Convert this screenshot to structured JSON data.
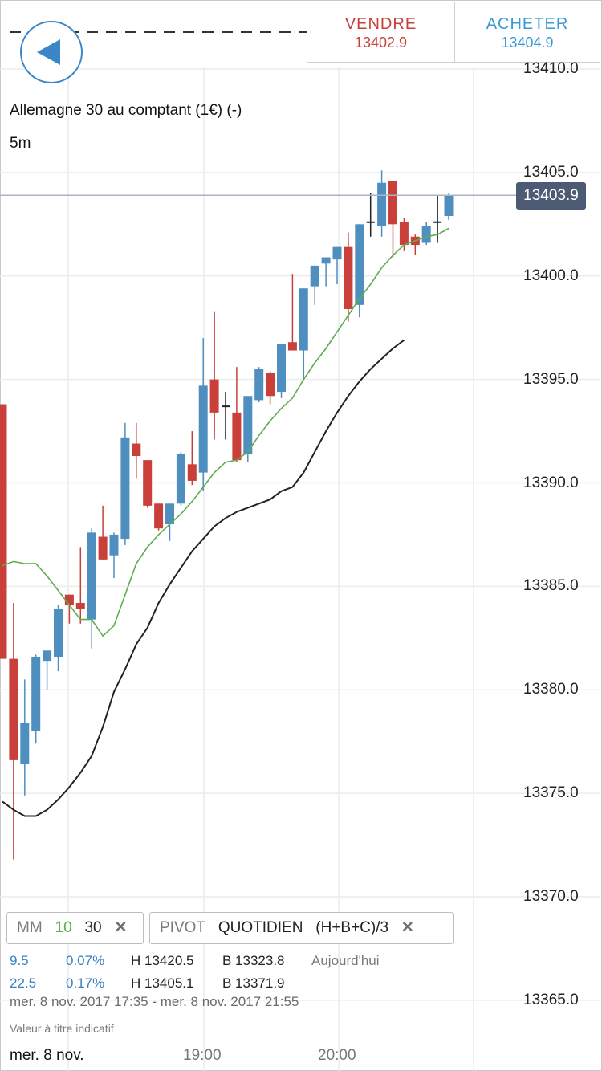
{
  "header": {
    "sell": {
      "label": "VENDRE",
      "price": "13402.9"
    },
    "buy": {
      "label": "ACHETER",
      "price": "13404.9"
    }
  },
  "instrument": {
    "name": "Allemagne 30 au comptant (1€) (-)",
    "timeframe": "5m"
  },
  "current_price": "13403.9",
  "colors": {
    "bull": "#4f8fbf",
    "bear": "#c9403a",
    "doji": "#222222",
    "ma10": "#5cad4d",
    "ma30": "#222222",
    "price_line": "#a8b4c2"
  },
  "indicators": {
    "mm": {
      "name": "MM",
      "p1": "10",
      "p2": "30",
      "close": "✕"
    },
    "pivot": {
      "name": "PIVOT",
      "period": "QUOTIDIEN",
      "formula": "(H+B+C)/3",
      "close": "✕"
    }
  },
  "info_rows": [
    {
      "val": "9.5",
      "pct": "0.07%",
      "high": "H 13420.5",
      "low": "B 13323.8",
      "label": "Aujourd'hui"
    },
    {
      "val": "22.5",
      "pct": "0.17%",
      "high": "H 13405.1",
      "low": "B 13371.9",
      "label": ""
    }
  ],
  "date_range": "mer. 8 nov. 2017 17:35 - mer. 8 nov. 2017 21:55",
  "disclaimer": "Valeur à titre indicatif",
  "time_axis": {
    "date": "mer. 8 nov.",
    "t1": "19:00",
    "t2": "20:00"
  },
  "chart_data": {
    "type": "candlestick",
    "y_ticks": [
      "13410.0",
      "13405.0",
      "13400.0",
      "13395.0",
      "13390.0",
      "13385.0",
      "13380.0",
      "13375.0",
      "13370.0",
      "13365.0"
    ],
    "y_range": [
      13363,
      13412
    ],
    "current_price_line": 13403.9,
    "candles": [
      {
        "o": 13393.8,
        "h": 13393.8,
        "l": 13381.5,
        "c": 13381.5
      },
      {
        "o": 13381.5,
        "h": 13384.2,
        "l": 13371.8,
        "c": 13376.6
      },
      {
        "o": 13376.4,
        "h": 13380.5,
        "l": 13374.9,
        "c": 13378.4
      },
      {
        "o": 13378.0,
        "h": 13381.7,
        "l": 13377.4,
        "c": 13381.6
      },
      {
        "o": 13381.4,
        "h": 13381.8,
        "l": 13380.0,
        "c": 13381.9
      },
      {
        "o": 13381.6,
        "h": 13384.1,
        "l": 13380.9,
        "c": 13383.9
      },
      {
        "o": 13384.6,
        "h": 13384.6,
        "l": 13383.2,
        "c": 13384.1
      },
      {
        "o": 13384.2,
        "h": 13386.9,
        "l": 13383.2,
        "c": 13383.9
      },
      {
        "o": 13383.4,
        "h": 13387.8,
        "l": 13382.0,
        "c": 13387.6
      },
      {
        "o": 13387.4,
        "h": 13388.9,
        "l": 13386.3,
        "c": 13386.3
      },
      {
        "o": 13386.5,
        "h": 13387.6,
        "l": 13385.4,
        "c": 13387.5
      },
      {
        "o": 13387.3,
        "h": 13392.9,
        "l": 13387.0,
        "c": 13392.2
      },
      {
        "o": 13391.9,
        "h": 13392.9,
        "l": 13390.2,
        "c": 13391.3
      },
      {
        "o": 13391.1,
        "h": 13391.1,
        "l": 13388.8,
        "c": 13388.9
      },
      {
        "o": 13389.0,
        "h": 13389.0,
        "l": 13387.7,
        "c": 13387.8
      },
      {
        "o": 13388.0,
        "h": 13389.0,
        "l": 13387.2,
        "c": 13389.0
      },
      {
        "o": 13389.0,
        "h": 13391.5,
        "l": 13388.9,
        "c": 13391.4
      },
      {
        "o": 13390.9,
        "h": 13392.5,
        "l": 13389.9,
        "c": 13390.1
      },
      {
        "o": 13390.5,
        "h": 13397.0,
        "l": 13389.6,
        "c": 13394.7
      },
      {
        "o": 13395.0,
        "h": 13398.3,
        "l": 13392.1,
        "c": 13393.4
      },
      {
        "o": 13393.6,
        "h": 13394.4,
        "l": 13392.1,
        "c": 13393.7
      },
      {
        "o": 13393.4,
        "h": 13395.6,
        "l": 13391.0,
        "c": 13391.1
      },
      {
        "o": 13391.4,
        "h": 13394.2,
        "l": 13391.0,
        "c": 13394.2
      },
      {
        "o": 13394.0,
        "h": 13395.6,
        "l": 13393.9,
        "c": 13395.5
      },
      {
        "o": 13395.3,
        "h": 13395.4,
        "l": 13393.8,
        "c": 13394.2
      },
      {
        "o": 13394.4,
        "h": 13396.7,
        "l": 13394.1,
        "c": 13396.7
      },
      {
        "o": 13396.8,
        "h": 13400.1,
        "l": 13396.4,
        "c": 13396.4
      },
      {
        "o": 13396.4,
        "h": 13399.4,
        "l": 13395.0,
        "c": 13399.4
      },
      {
        "o": 13399.5,
        "h": 13400.5,
        "l": 13398.6,
        "c": 13400.5
      },
      {
        "o": 13400.6,
        "h": 13400.9,
        "l": 13399.5,
        "c": 13400.9
      },
      {
        "o": 13400.8,
        "h": 13401.4,
        "l": 13399.6,
        "c": 13401.4
      },
      {
        "o": 13401.4,
        "h": 13402.1,
        "l": 13397.8,
        "c": 13398.4
      },
      {
        "o": 13398.6,
        "h": 13402.5,
        "l": 13398.0,
        "c": 13402.5
      },
      {
        "o": 13402.6,
        "h": 13404.0,
        "l": 13401.9,
        "c": 13402.6
      },
      {
        "o": 13402.4,
        "h": 13405.1,
        "l": 13401.9,
        "c": 13404.5
      },
      {
        "o": 13404.6,
        "h": 13404.6,
        "l": 13400.9,
        "c": 13402.5
      },
      {
        "o": 13402.6,
        "h": 13402.8,
        "l": 13401.2,
        "c": 13401.5
      },
      {
        "o": 13401.9,
        "h": 13402.0,
        "l": 13401.0,
        "c": 13401.5
      },
      {
        "o": 13401.6,
        "h": 13402.6,
        "l": 13401.5,
        "c": 13402.4
      },
      {
        "o": 13402.6,
        "h": 13403.9,
        "l": 13401.6,
        "c": 13402.6
      },
      {
        "o": 13402.9,
        "h": 13404.0,
        "l": 13402.7,
        "c": 13403.9
      }
    ],
    "ma10": [
      13386.0,
      13386.2,
      13386.1,
      13386.1,
      13385.5,
      13384.8,
      13384.1,
      13383.4,
      13383.4,
      13382.6,
      13383.1,
      13384.6,
      13386.1,
      13386.9,
      13387.5,
      13388.0,
      13388.5,
      13389.1,
      13389.8,
      13390.5,
      13391.0,
      13391.1,
      13391.5,
      13392.3,
      13393.0,
      13393.6,
      13394.1,
      13395.0,
      13395.8,
      13396.5,
      13397.3,
      13398.1,
      13398.9,
      13399.6,
      13400.4,
      13401.0,
      13401.5,
      13401.7,
      13401.9,
      13402.0,
      13402.3
    ],
    "ma30": [
      13374.6,
      13374.2,
      13373.9,
      13373.9,
      13374.2,
      13374.7,
      13375.3,
      13376.0,
      13376.8,
      13378.2,
      13379.9,
      13381.0,
      13382.2,
      13383.0,
      13384.2,
      13385.1,
      13385.9,
      13386.7,
      13387.3,
      13387.9,
      13388.3,
      13388.6,
      13388.8,
      13389.0,
      13389.2,
      13389.6,
      13389.8,
      13390.5,
      13391.5,
      13392.5,
      13393.4,
      13394.2,
      13394.9,
      13395.5,
      13396.0,
      13396.5,
      13396.9
    ]
  }
}
